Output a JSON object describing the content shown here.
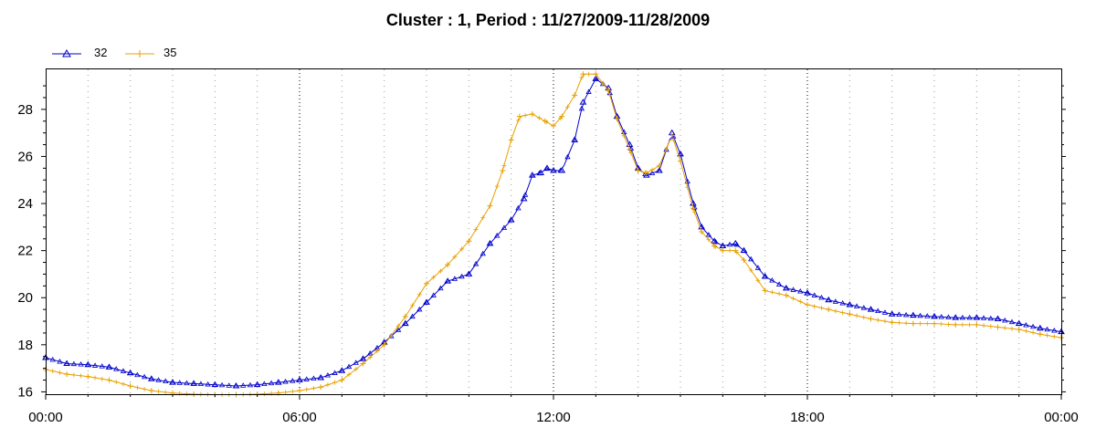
{
  "chart_data": {
    "type": "line",
    "title": "Cluster : 1, Period : 11/27/2009-11/28/2009",
    "xlabel": "",
    "ylabel": "",
    "x_ticks": [
      "00:00",
      "06:00",
      "12:00",
      "18:00",
      "00:00"
    ],
    "y_ticks": [
      16,
      18,
      20,
      22,
      24,
      26,
      28
    ],
    "xlim": [
      0,
      24
    ],
    "ylim": [
      15.9,
      29.7
    ],
    "grid": "vertical dotted",
    "legend_position": "top-left",
    "x_unit": "hours",
    "series": [
      {
        "name": "32",
        "color": "#0000cc",
        "marker": "triangle",
        "x": [
          0,
          0.5,
          1,
          1.5,
          2,
          2.5,
          3,
          3.5,
          4,
          4.5,
          5,
          5.5,
          6,
          6.5,
          7,
          7.5,
          8,
          8.5,
          9,
          9.5,
          10,
          10.5,
          11,
          11.3,
          11.5,
          11.7,
          11.85,
          12,
          12.2,
          12.5,
          12.7,
          13,
          13.3,
          13.5,
          13.8,
          14,
          14.2,
          14.5,
          14.8,
          15,
          15.3,
          15.5,
          15.8,
          16,
          16.3,
          16.5,
          17,
          17.5,
          18,
          18.5,
          19,
          19.5,
          20,
          20.5,
          21,
          21.5,
          22,
          22.5,
          23,
          23.5,
          24
        ],
        "values": [
          17.45,
          17.2,
          17.15,
          17.05,
          16.8,
          16.55,
          16.4,
          16.35,
          16.3,
          16.25,
          16.3,
          16.4,
          16.5,
          16.6,
          16.9,
          17.4,
          18.1,
          18.9,
          19.8,
          20.7,
          21.0,
          22.3,
          23.3,
          24.2,
          25.2,
          25.3,
          25.5,
          25.4,
          25.4,
          26.7,
          28.3,
          29.3,
          28.9,
          27.7,
          26.5,
          25.5,
          25.2,
          25.4,
          27.0,
          26.1,
          24.0,
          23.0,
          22.4,
          22.2,
          22.3,
          22.0,
          20.9,
          20.4,
          20.2,
          19.9,
          19.7,
          19.5,
          19.3,
          19.25,
          19.2,
          19.15,
          19.15,
          19.1,
          18.9,
          18.7,
          18.55
        ]
      },
      {
        "name": "35",
        "color": "#e8a000",
        "marker": "plus",
        "x": [
          0,
          0.5,
          1,
          1.5,
          2,
          2.5,
          3,
          3.5,
          4,
          4.5,
          5,
          5.5,
          6,
          6.5,
          7,
          7.5,
          8,
          8.5,
          9,
          9.5,
          10,
          10.5,
          10.8,
          11,
          11.2,
          11.5,
          11.8,
          12,
          12.2,
          12.5,
          12.7,
          13,
          13.3,
          13.5,
          13.8,
          14,
          14.2,
          14.5,
          14.8,
          15,
          15.3,
          15.5,
          15.8,
          16,
          16.3,
          16.5,
          17,
          17.5,
          18,
          18.5,
          19,
          19.5,
          20,
          20.5,
          21,
          21.5,
          22,
          22.5,
          23,
          23.5,
          24
        ],
        "values": [
          16.95,
          16.75,
          16.65,
          16.5,
          16.25,
          16.05,
          15.95,
          15.9,
          15.88,
          15.88,
          15.9,
          15.95,
          16.05,
          16.2,
          16.5,
          17.2,
          18.0,
          19.2,
          20.6,
          21.4,
          22.4,
          23.9,
          25.4,
          26.7,
          27.7,
          27.8,
          27.5,
          27.3,
          27.7,
          28.6,
          29.5,
          29.5,
          28.8,
          27.6,
          26.3,
          25.4,
          25.3,
          25.6,
          26.9,
          25.8,
          23.8,
          22.8,
          22.2,
          22.0,
          22.0,
          21.6,
          20.3,
          20.1,
          19.7,
          19.5,
          19.3,
          19.1,
          18.95,
          18.9,
          18.9,
          18.85,
          18.85,
          18.75,
          18.65,
          18.45,
          18.3
        ]
      }
    ]
  }
}
